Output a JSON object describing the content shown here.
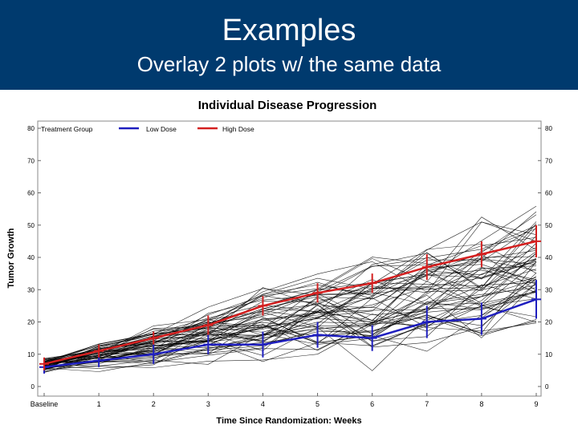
{
  "slide": {
    "title": "Examples",
    "subtitle": "Overlay 2 plots w/ the same data"
  },
  "colors": {
    "header_bg": "#003a6e",
    "low_dose": "#1f1fbf",
    "high_dose": "#d42020",
    "individual": "#000000"
  },
  "chart_data": {
    "type": "line",
    "title": "Individual Disease Progression",
    "xlabel": "Time Since Randomization: Weeks",
    "ylabel": "Tumor Growth",
    "categories": [
      "Baseline",
      "1",
      "2",
      "3",
      "4",
      "5",
      "6",
      "7",
      "8",
      "9"
    ],
    "x": [
      0,
      1,
      2,
      3,
      4,
      5,
      6,
      7,
      8,
      9
    ],
    "ylim": [
      0,
      80
    ],
    "yticks": [
      "0",
      "10",
      "20",
      "30",
      "40",
      "50",
      "60",
      "70",
      "80"
    ],
    "legend": {
      "title": "Treatment Group",
      "placement": "top-left",
      "entries": [
        "Low Dose",
        "High Dose"
      ]
    },
    "series": [
      {
        "name": "Low Dose",
        "color": "#1f1fbf",
        "values": [
          6,
          8,
          10,
          13,
          13,
          16,
          15,
          20,
          21,
          27
        ],
        "error": [
          2,
          2,
          3,
          3,
          4,
          4,
          4,
          5,
          5,
          6
        ]
      },
      {
        "name": "High Dose",
        "color": "#d42020",
        "values": [
          7,
          11,
          15,
          19,
          25,
          29,
          32,
          37,
          41,
          45
        ],
        "error": [
          2,
          2,
          2,
          3,
          3,
          3,
          3,
          4,
          4,
          5
        ]
      }
    ],
    "individual_lines": 60
  }
}
